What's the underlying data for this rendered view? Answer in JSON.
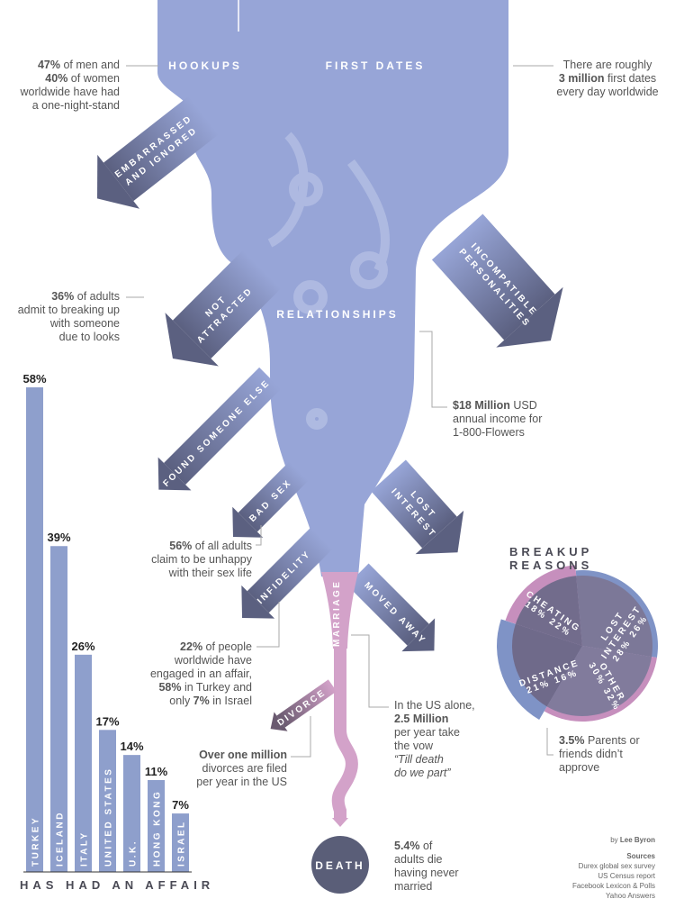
{
  "colors": {
    "stream": "#97a5d7",
    "arrow_dark": "#5b6080",
    "marriage": "#d3a2c9",
    "death": "#5a5e78",
    "bar": "#8e9fcc",
    "pie": "#7a7595",
    "ring_blue": "#7f93c6",
    "ring_pink": "#c68fbd"
  },
  "streams": {
    "hookups": "HOOKUPS",
    "first_dates": "FIRST DATES",
    "relationships": "RELATIONSHIPS",
    "marriage": "MARRIAGE",
    "death": "DEATH"
  },
  "arrows": {
    "embarrassed_1": "EMBARRASSED",
    "embarrassed_2": "AND IGNORED",
    "not_attracted_1": "NOT",
    "not_attracted_2": "ATTRACTED",
    "incompatible_1": "INCOMPATIBLE",
    "incompatible_2": "PERSONALITIES",
    "found_someone_else": "FOUND SOMEONE ELSE",
    "bad_sex": "BAD SEX",
    "lost_interest_1": "LOST",
    "lost_interest_2": "INTEREST",
    "infidelity": "INFIDELITY",
    "moved_away": "MOVED AWAY",
    "divorce": "DIVORCE"
  },
  "annotations": {
    "one_night_stand": [
      [
        [
          "b",
          "47%"
        ],
        [
          "t",
          " of men and"
        ]
      ],
      [
        [
          "b",
          "40%"
        ],
        [
          "t",
          " of women"
        ]
      ],
      [
        [
          "t",
          "worldwide have had"
        ]
      ],
      [
        [
          "t",
          "a one-night-stand"
        ]
      ]
    ],
    "first_dates": [
      [
        [
          "t",
          "There are roughly"
        ]
      ],
      [
        [
          "b",
          "3 million"
        ],
        [
          "t",
          " first dates"
        ]
      ],
      [
        [
          "t",
          "every day worldwide"
        ]
      ]
    ],
    "looks": [
      [
        [
          "b",
          "36%"
        ],
        [
          "t",
          " of adults"
        ]
      ],
      [
        [
          "t",
          "admit to breaking up"
        ]
      ],
      [
        [
          "t",
          "with someone"
        ]
      ],
      [
        [
          "t",
          "due to looks"
        ]
      ]
    ],
    "flowers": [
      [
        [
          "b",
          "$18 Million"
        ],
        [
          "t",
          " USD"
        ]
      ],
      [
        [
          "t",
          "annual income for"
        ]
      ],
      [
        [
          "t",
          "1-800-Flowers"
        ]
      ]
    ],
    "sex_life": [
      [
        [
          "b",
          "56%"
        ],
        [
          "t",
          " of all adults"
        ]
      ],
      [
        [
          "t",
          "claim to be unhappy"
        ]
      ],
      [
        [
          "t",
          "with their sex life"
        ]
      ]
    ],
    "affair": [
      [
        [
          "b",
          "22%"
        ],
        [
          "t",
          " of people"
        ]
      ],
      [
        [
          "t",
          "worldwide have"
        ]
      ],
      [
        [
          "t",
          "engaged in an affair,"
        ]
      ],
      [
        [
          "b",
          "58%"
        ],
        [
          "t",
          " in Turkey and"
        ]
      ],
      [
        [
          "t",
          "only "
        ],
        [
          "b",
          "7%"
        ],
        [
          "t",
          " in Israel"
        ]
      ]
    ],
    "vow": [
      [
        [
          "t",
          "In the US alone,"
        ]
      ],
      [
        [
          "b",
          "2.5 Million"
        ]
      ],
      [
        [
          "t",
          "per year take"
        ]
      ],
      [
        [
          "t",
          "the vow"
        ]
      ],
      [
        [
          "i",
          "“Till death"
        ]
      ],
      [
        [
          "i",
          "do we part”"
        ]
      ]
    ],
    "divorces": [
      [
        [
          "b",
          "Over one million"
        ]
      ],
      [
        [
          "t",
          "divorces are filed"
        ]
      ],
      [
        [
          "t",
          "per year in the US"
        ]
      ]
    ],
    "never_married": [
      [
        [
          "b",
          "5.4%"
        ],
        [
          "t",
          " of"
        ]
      ],
      [
        [
          "t",
          "adults die"
        ]
      ],
      [
        [
          "t",
          "having never"
        ]
      ],
      [
        [
          "t",
          "married"
        ]
      ]
    ],
    "parents": [
      [
        [
          "b",
          "3.5%"
        ],
        [
          "t",
          " Parents or"
        ]
      ],
      [
        [
          "t",
          "friends didn’t"
        ]
      ],
      [
        [
          "t",
          "approve"
        ]
      ]
    ]
  },
  "chart_data": [
    {
      "type": "bar",
      "title": "HAS HAD AN AFFAIR",
      "categories": [
        "TURKEY",
        "ICELAND",
        "ITALY",
        "UNITED STATES",
        "U.K.",
        "HONG KONG",
        "ISRAEL"
      ],
      "values": [
        58,
        39,
        26,
        17,
        14,
        11,
        7
      ],
      "value_labels": [
        "58%",
        "39%",
        "26%",
        "17%",
        "14%",
        "11%",
        "7%"
      ],
      "ylim": [
        0,
        58
      ],
      "grid": false
    },
    {
      "type": "pie",
      "title": "BREAKUP REASONS",
      "slices": [
        {
          "label": "LOST",
          "label2": "INTEREST",
          "values": [
            28,
            26
          ],
          "value_labels": "28% 26%"
        },
        {
          "label": "OTHER",
          "label2": "",
          "values": [
            30,
            32
          ],
          "value_labels": "30% 32%"
        },
        {
          "label": "DISTANCE",
          "label2": "",
          "values": [
            21,
            16
          ],
          "value_labels": "21% 16%"
        },
        {
          "label": "CHEATING",
          "label2": "",
          "values": [
            18,
            22
          ],
          "value_labels": "18% 22%"
        }
      ]
    }
  ],
  "credits": {
    "by": "by ",
    "author": "Lee Byron",
    "sources_title": "Sources",
    "sources": [
      "Durex global sex survey",
      "US Census report",
      "Facebook Lexicon & Polls",
      "Yahoo Answers"
    ]
  }
}
